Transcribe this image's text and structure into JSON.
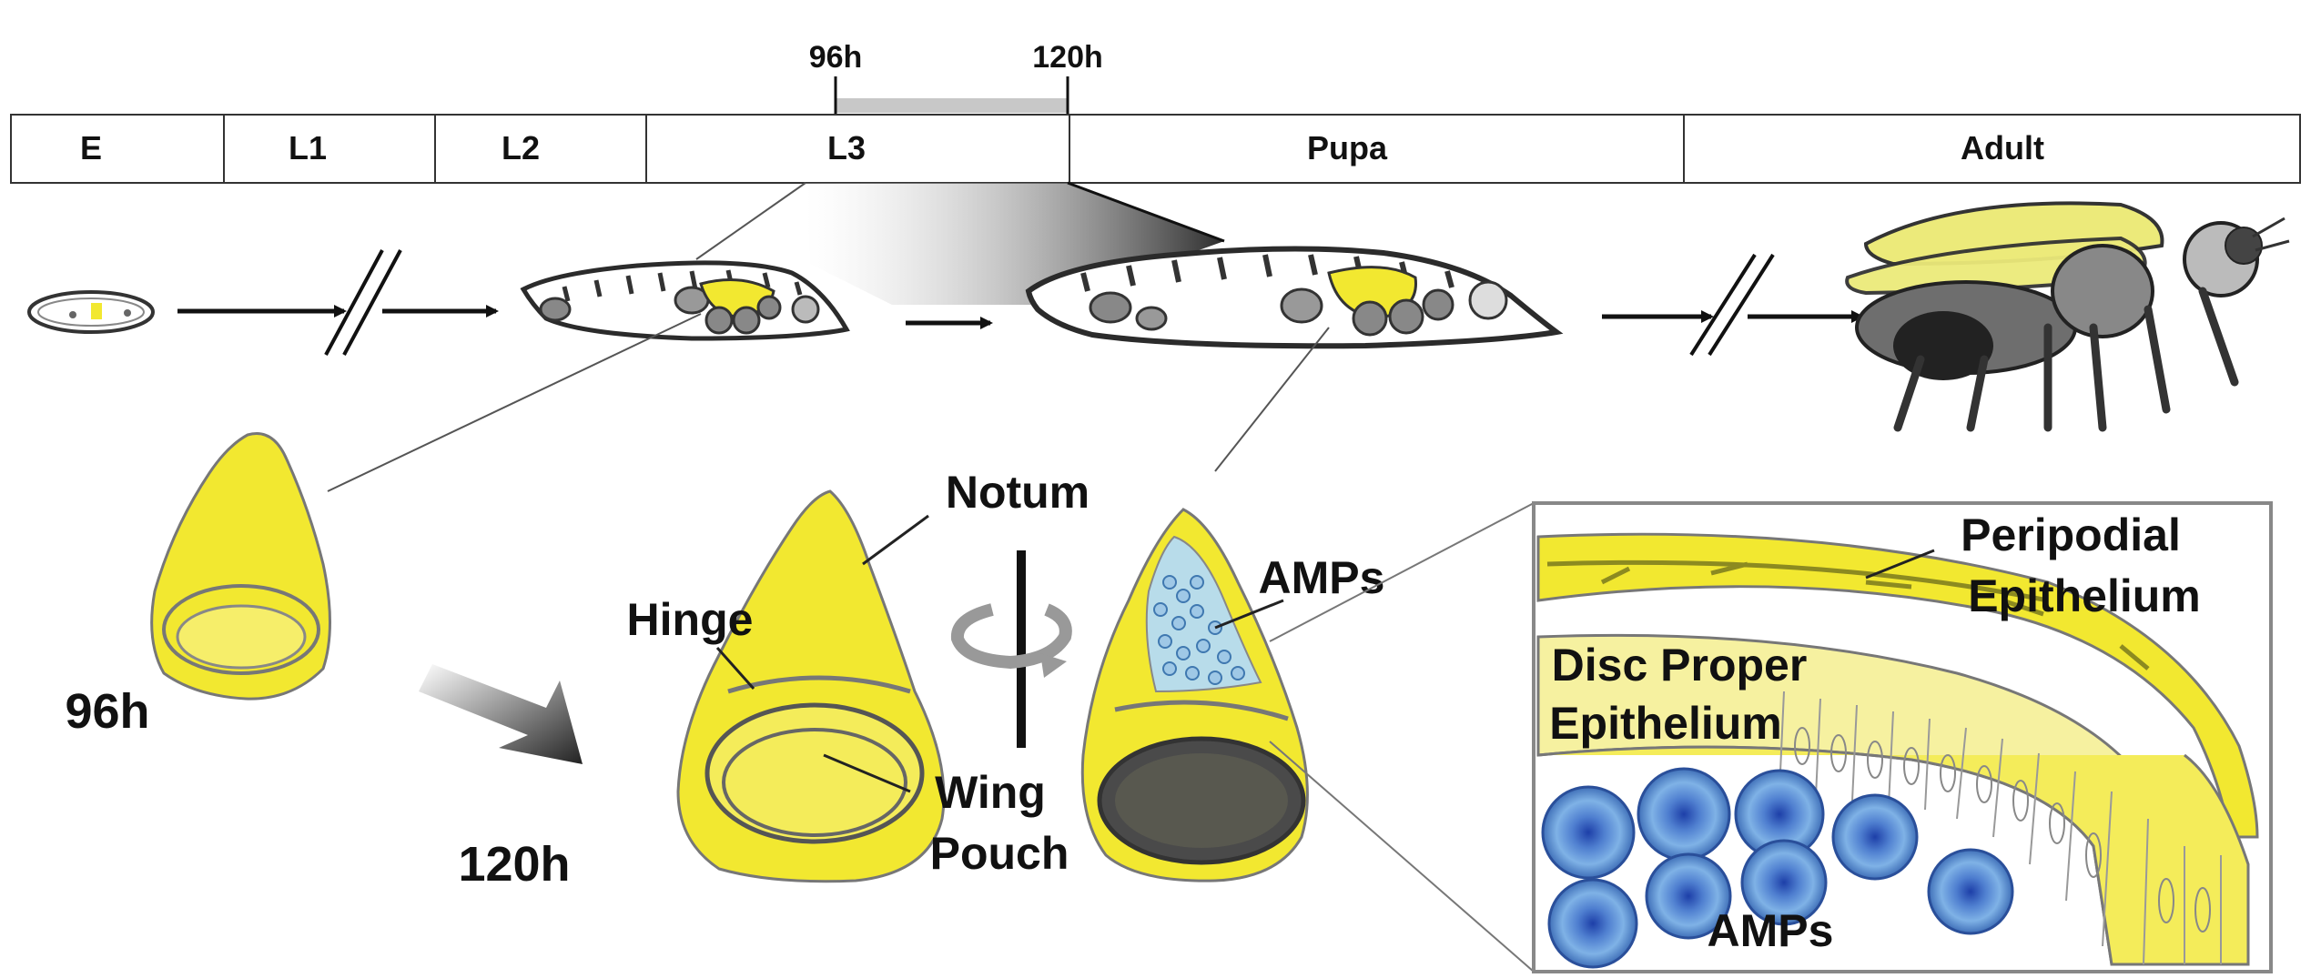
{
  "timeline": {
    "stages": [
      "E",
      "L1",
      "L2",
      "L3",
      "Pupa",
      "Adult"
    ],
    "window_start": "96h",
    "window_end": "120h"
  },
  "labels": {
    "disc_96h": "96h",
    "disc_120h": "120h",
    "notum": "Notum",
    "hinge": "Hinge",
    "wing": "Wing",
    "pouch": "Pouch",
    "amps_disc": "AMPs",
    "peripodial_1": "Peripodial",
    "peripodial_2": "Epithelium",
    "disc_proper_1": "Disc Proper",
    "disc_proper_2": "Epithelium",
    "amps_inset": "AMPs"
  },
  "colors": {
    "disc_yellow": "#f2e830",
    "amp_blue": "#4a86c8",
    "outline": "#2b2b2b",
    "window_bar": "#c8c8c8"
  }
}
